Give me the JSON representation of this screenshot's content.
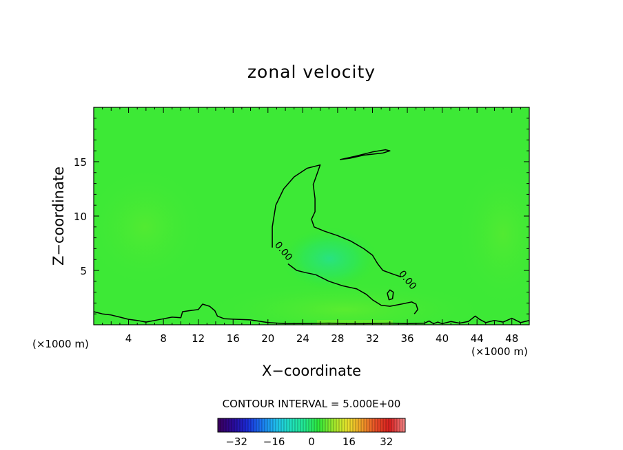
{
  "chart_data": {
    "type": "heatmap",
    "title": "zonal velocity",
    "xlabel": "X−coordinate",
    "ylabel": "Z−coordinate",
    "x_unit": "(×1000 m)",
    "xlim": [
      0,
      50
    ],
    "ylim": [
      0,
      20
    ],
    "x_ticks": [
      4,
      8,
      12,
      16,
      20,
      24,
      28,
      32,
      36,
      40,
      44,
      48
    ],
    "y_ticks": [
      5,
      10,
      15
    ],
    "contour_interval_text": "CONTOUR INTERVAL = 5.000E+00",
    "contour_labels": [
      "0.00",
      "0.00"
    ],
    "colorbar": {
      "range": [
        -40,
        40
      ],
      "ticks": [
        "−32",
        "−16",
        "0",
        "16",
        "32"
      ],
      "tick_values": [
        -32,
        -16,
        0,
        16,
        32
      ],
      "colors": [
        "#3a0060",
        "#2a0a9a",
        "#1a2cd8",
        "#1a78f0",
        "#20c0ee",
        "#20e0c0",
        "#22e890",
        "#2ee83a",
        "#9ae82c",
        "#e8e42c",
        "#f0a028",
        "#e85028",
        "#d81e1e",
        "#f08080"
      ]
    },
    "contours": [
      {
        "name": "upper-closed",
        "closed": true,
        "points": [
          [
            28.3,
            15.2
          ],
          [
            30,
            15.5
          ],
          [
            32,
            15.9
          ],
          [
            33.5,
            16.1
          ],
          [
            34,
            16.0
          ],
          [
            33.2,
            15.8
          ],
          [
            31,
            15.6
          ],
          [
            29.3,
            15.3
          ]
        ]
      },
      {
        "name": "zero-tongue",
        "closed": false,
        "points": [
          [
            20.5,
            7.1
          ],
          [
            20.5,
            9
          ],
          [
            20.9,
            11
          ],
          [
            21.8,
            12.5
          ],
          [
            23,
            13.6
          ],
          [
            24.5,
            14.4
          ],
          [
            26,
            14.7
          ],
          [
            25.6,
            13.8
          ],
          [
            25.2,
            12.9
          ],
          [
            25.4,
            11.6
          ],
          [
            25.4,
            10.4
          ],
          [
            25.0,
            9.7
          ],
          [
            25.3,
            9.0
          ],
          [
            26.5,
            8.6
          ],
          [
            28.0,
            8.2
          ],
          [
            29.5,
            7.7
          ],
          [
            31,
            7.0
          ],
          [
            32,
            6.4
          ],
          [
            32.6,
            5.6
          ],
          [
            33.2,
            5.0
          ],
          [
            34.2,
            4.7
          ],
          [
            35.3,
            4.4
          ]
        ]
      },
      {
        "name": "zero-lower",
        "closed": false,
        "points": [
          [
            22.3,
            5.6
          ],
          [
            23.3,
            5.0
          ],
          [
            24.3,
            4.8
          ],
          [
            25.5,
            4.6
          ],
          [
            27,
            4.0
          ],
          [
            28.5,
            3.6
          ],
          [
            30.2,
            3.3
          ],
          [
            31.3,
            2.8
          ],
          [
            32,
            2.3
          ],
          [
            33,
            1.8
          ],
          [
            34.0,
            1.7
          ],
          [
            35.3,
            1.9
          ],
          [
            36.5,
            2.1
          ],
          [
            37,
            1.9
          ],
          [
            37.2,
            1.4
          ],
          [
            36.8,
            1.0
          ]
        ]
      },
      {
        "name": "small-loop",
        "closed": true,
        "points": [
          [
            33.7,
            2.9
          ],
          [
            34.0,
            3.2
          ],
          [
            34.4,
            3.0
          ],
          [
            34.3,
            2.4
          ],
          [
            33.9,
            2.3
          ]
        ]
      },
      {
        "name": "surface",
        "closed": false,
        "points": [
          [
            0,
            1.2
          ],
          [
            1,
            1.0
          ],
          [
            2,
            0.9
          ],
          [
            3,
            0.7
          ],
          [
            4,
            0.5
          ],
          [
            5,
            0.4
          ],
          [
            6,
            0.25
          ],
          [
            7,
            0.4
          ],
          [
            8,
            0.55
          ],
          [
            9,
            0.7
          ],
          [
            10,
            0.65
          ],
          [
            10.2,
            1.2
          ],
          [
            11,
            1.3
          ],
          [
            12,
            1.4
          ],
          [
            12.5,
            1.9
          ],
          [
            13.3,
            1.7
          ],
          [
            13.9,
            1.3
          ],
          [
            14.2,
            0.8
          ],
          [
            15,
            0.55
          ],
          [
            16.5,
            0.5
          ],
          [
            18,
            0.45
          ],
          [
            20,
            0.2
          ],
          [
            22,
            0.1
          ],
          [
            25,
            0.12
          ],
          [
            27,
            0.15
          ],
          [
            29,
            0.1
          ],
          [
            31,
            0.1
          ],
          [
            34,
            0.15
          ],
          [
            36,
            0.1
          ],
          [
            38,
            0.15
          ],
          [
            38.5,
            0.35
          ],
          [
            39,
            0.1
          ],
          [
            39.5,
            0.25
          ],
          [
            40,
            0.1
          ],
          [
            41,
            0.3
          ],
          [
            42,
            0.15
          ],
          [
            43,
            0.3
          ],
          [
            43.8,
            0.8
          ],
          [
            44.3,
            0.5
          ],
          [
            45,
            0.2
          ],
          [
            46,
            0.4
          ],
          [
            47,
            0.25
          ],
          [
            48,
            0.6
          ],
          [
            49,
            0.2
          ],
          [
            50,
            0.4
          ]
        ]
      }
    ]
  }
}
